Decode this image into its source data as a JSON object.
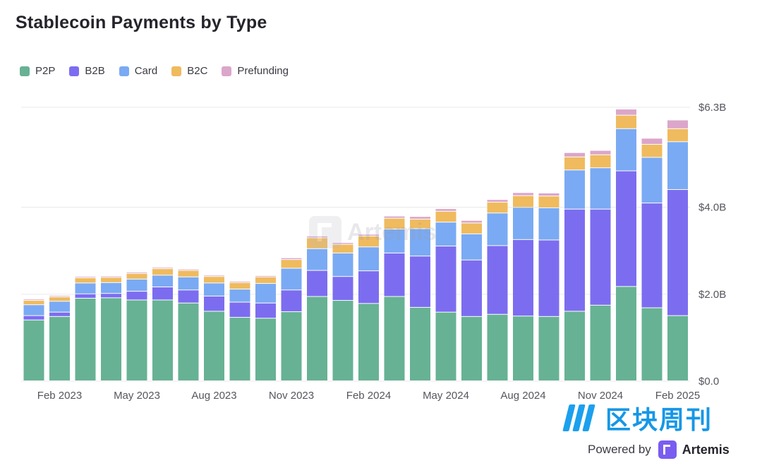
{
  "page": {
    "title": "Stablecoin Payments by Type"
  },
  "watermark": {
    "text": "Artemis"
  },
  "footer": {
    "cn_brand": "区块周刊",
    "powered_label": "Powered by",
    "powered_brand": "Artemis"
  },
  "chart_data": {
    "type": "bar",
    "stacked": true,
    "title": "Stablecoin Payments by Type",
    "y_unit": "USD billions",
    "ylim": [
      0,
      6.3
    ],
    "y_ticks": [
      {
        "value": 0,
        "label": "$0.0"
      },
      {
        "value": 2.0,
        "label": "$2.0B"
      },
      {
        "value": 4.0,
        "label": "$4.0B"
      },
      {
        "value": 6.3,
        "label": "$6.3B"
      }
    ],
    "y_axis_position": "right",
    "grid": true,
    "legend_position": "top-left",
    "x_tick_labels": [
      {
        "index": 1,
        "label": "Feb 2023"
      },
      {
        "index": 4,
        "label": "May 2023"
      },
      {
        "index": 7,
        "label": "Aug 2023"
      },
      {
        "index": 10,
        "label": "Nov 2023"
      },
      {
        "index": 13,
        "label": "Feb 2024"
      },
      {
        "index": 16,
        "label": "May 2024"
      },
      {
        "index": 19,
        "label": "Aug 2024"
      },
      {
        "index": 22,
        "label": "Nov 2024"
      },
      {
        "index": 25,
        "label": "Feb 2025"
      }
    ],
    "categories": [
      "Jan 2023",
      "Feb 2023",
      "Mar 2023",
      "Apr 2023",
      "May 2023",
      "Jun 2023",
      "Jul 2023",
      "Aug 2023",
      "Sep 2023",
      "Oct 2023",
      "Nov 2023",
      "Dec 2023",
      "Jan 2024",
      "Feb 2024",
      "Mar 2024",
      "Apr 2024",
      "May 2024",
      "Jun 2024",
      "Jul 2024",
      "Aug 2024",
      "Sep 2024",
      "Oct 2024",
      "Nov 2024",
      "Dec 2024",
      "Jan 2025",
      "Feb 2025"
    ],
    "series": [
      {
        "name": "P2P",
        "color": "#67b294",
        "values": [
          1.4,
          1.48,
          1.9,
          1.91,
          1.86,
          1.86,
          1.79,
          1.6,
          1.46,
          1.44,
          1.59,
          1.94,
          1.85,
          1.78,
          1.94,
          1.69,
          1.58,
          1.48,
          1.53,
          1.49,
          1.48,
          1.6,
          1.74,
          2.17,
          1.68,
          1.5
        ]
      },
      {
        "name": "B2B",
        "color": "#7c6df0",
        "values": [
          0.1,
          0.1,
          0.1,
          0.1,
          0.2,
          0.3,
          0.3,
          0.35,
          0.35,
          0.35,
          0.5,
          0.6,
          0.55,
          0.75,
          1.0,
          1.18,
          1.52,
          1.3,
          1.58,
          1.76,
          1.76,
          2.35,
          2.21,
          2.66,
          2.41,
          2.9
        ]
      },
      {
        "name": "Card",
        "color": "#7aaaf3",
        "values": [
          0.25,
          0.25,
          0.25,
          0.25,
          0.28,
          0.27,
          0.3,
          0.3,
          0.3,
          0.45,
          0.5,
          0.5,
          0.54,
          0.55,
          0.55,
          0.63,
          0.55,
          0.6,
          0.75,
          0.74,
          0.74,
          0.9,
          0.95,
          0.97,
          1.05,
          1.1
        ]
      },
      {
        "name": "B2C",
        "color": "#efbb5e",
        "values": [
          0.1,
          0.1,
          0.12,
          0.12,
          0.13,
          0.15,
          0.15,
          0.15,
          0.15,
          0.15,
          0.2,
          0.25,
          0.2,
          0.25,
          0.25,
          0.22,
          0.25,
          0.25,
          0.25,
          0.27,
          0.27,
          0.3,
          0.3,
          0.31,
          0.3,
          0.3
        ]
      },
      {
        "name": "Prefunding",
        "color": "#dba6ca",
        "values": [
          0.03,
          0.03,
          0.03,
          0.03,
          0.03,
          0.03,
          0.03,
          0.03,
          0.03,
          0.03,
          0.04,
          0.04,
          0.04,
          0.04,
          0.05,
          0.06,
          0.06,
          0.06,
          0.06,
          0.07,
          0.07,
          0.1,
          0.1,
          0.14,
          0.14,
          0.2
        ]
      }
    ]
  }
}
